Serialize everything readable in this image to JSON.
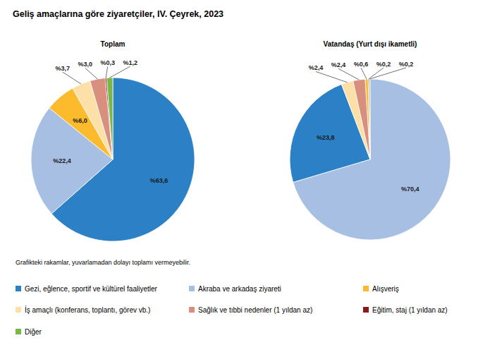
{
  "chart_data": {
    "type": "pie",
    "title": "Geliş amaçlarına göre ziyaretçiler, IV. Çeyrek, 2023",
    "note": "Grafikteki rakamlar, yuvarlamadan dolayı toplamı vermeyebilir.",
    "categories": [
      "Gezi, eğlence, sportif ve kültürel faaliyetler",
      "Akraba ve arkadaş ziyareti",
      "Alışveriş",
      "İş amaçlı (konferans, toplantı, görev vb.)",
      "Sağlık ve tıbbi nedenler (1 yıldan az)",
      "Eğitim, staj (1 yıldan az)",
      "Diğer"
    ],
    "colors": [
      "#2c80c5",
      "#a7bfe3",
      "#fbbb2c",
      "#fddfa8",
      "#d88f7e",
      "#8b1a1a",
      "#78b648"
    ],
    "legend": "bottom",
    "data_labels": true,
    "series": [
      {
        "name": "Toplam",
        "values": [
          63.6,
          22.4,
          6.0,
          3.7,
          3.0,
          0.3,
          1.2
        ],
        "value_labels": [
          "%63,6",
          "%22,4",
          "%6,0",
          "%3,7",
          "%3,0",
          "%0,3",
          "%1,2"
        ]
      },
      {
        "name": "Vatandaş (Yurt dışı ikametli)",
        "values": [
          23.8,
          70.4,
          0.6,
          2.4,
          2.4,
          0.2,
          0.2
        ],
        "value_labels": [
          "%23,8",
          "%70,4",
          "%0,6",
          "%2,4",
          "%2,4",
          "%0,2",
          "%0,2"
        ]
      }
    ]
  }
}
